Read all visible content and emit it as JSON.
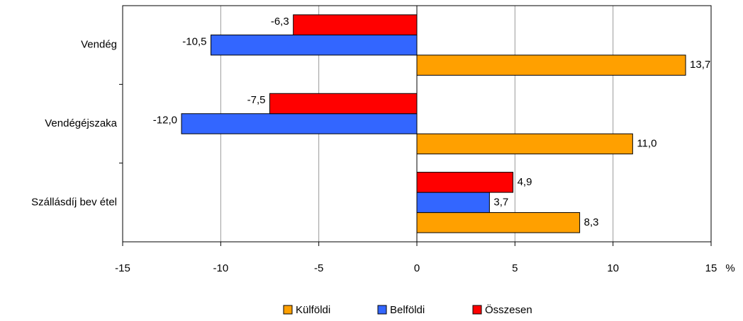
{
  "chart_data": {
    "type": "hbar",
    "categories": [
      "Vendég",
      "Vendégéjszaka",
      "Szállásdíj bev étel"
    ],
    "series": [
      {
        "name": "Külföldi",
        "color": "#ffa000",
        "values": [
          13.7,
          11.0,
          8.3
        ],
        "value_labels": [
          "13,7",
          "11,0",
          "8,3"
        ]
      },
      {
        "name": "Belföldi",
        "color": "#3366ff",
        "values": [
          -10.5,
          -12.0,
          3.7
        ],
        "value_labels": [
          "-10,5",
          "-12,0",
          "3,7"
        ]
      },
      {
        "name": "Összesen",
        "color": "#ff0000",
        "values": [
          -6.3,
          -7.5,
          4.9
        ],
        "value_labels": [
          "-6,3",
          "-7,5",
          "4,9"
        ]
      }
    ],
    "xlabel": "%",
    "xlim": [
      -15,
      15
    ],
    "xticks": [
      -15,
      -10,
      -5,
      0,
      5,
      10,
      15
    ],
    "grid": true,
    "legend": "bottom"
  }
}
